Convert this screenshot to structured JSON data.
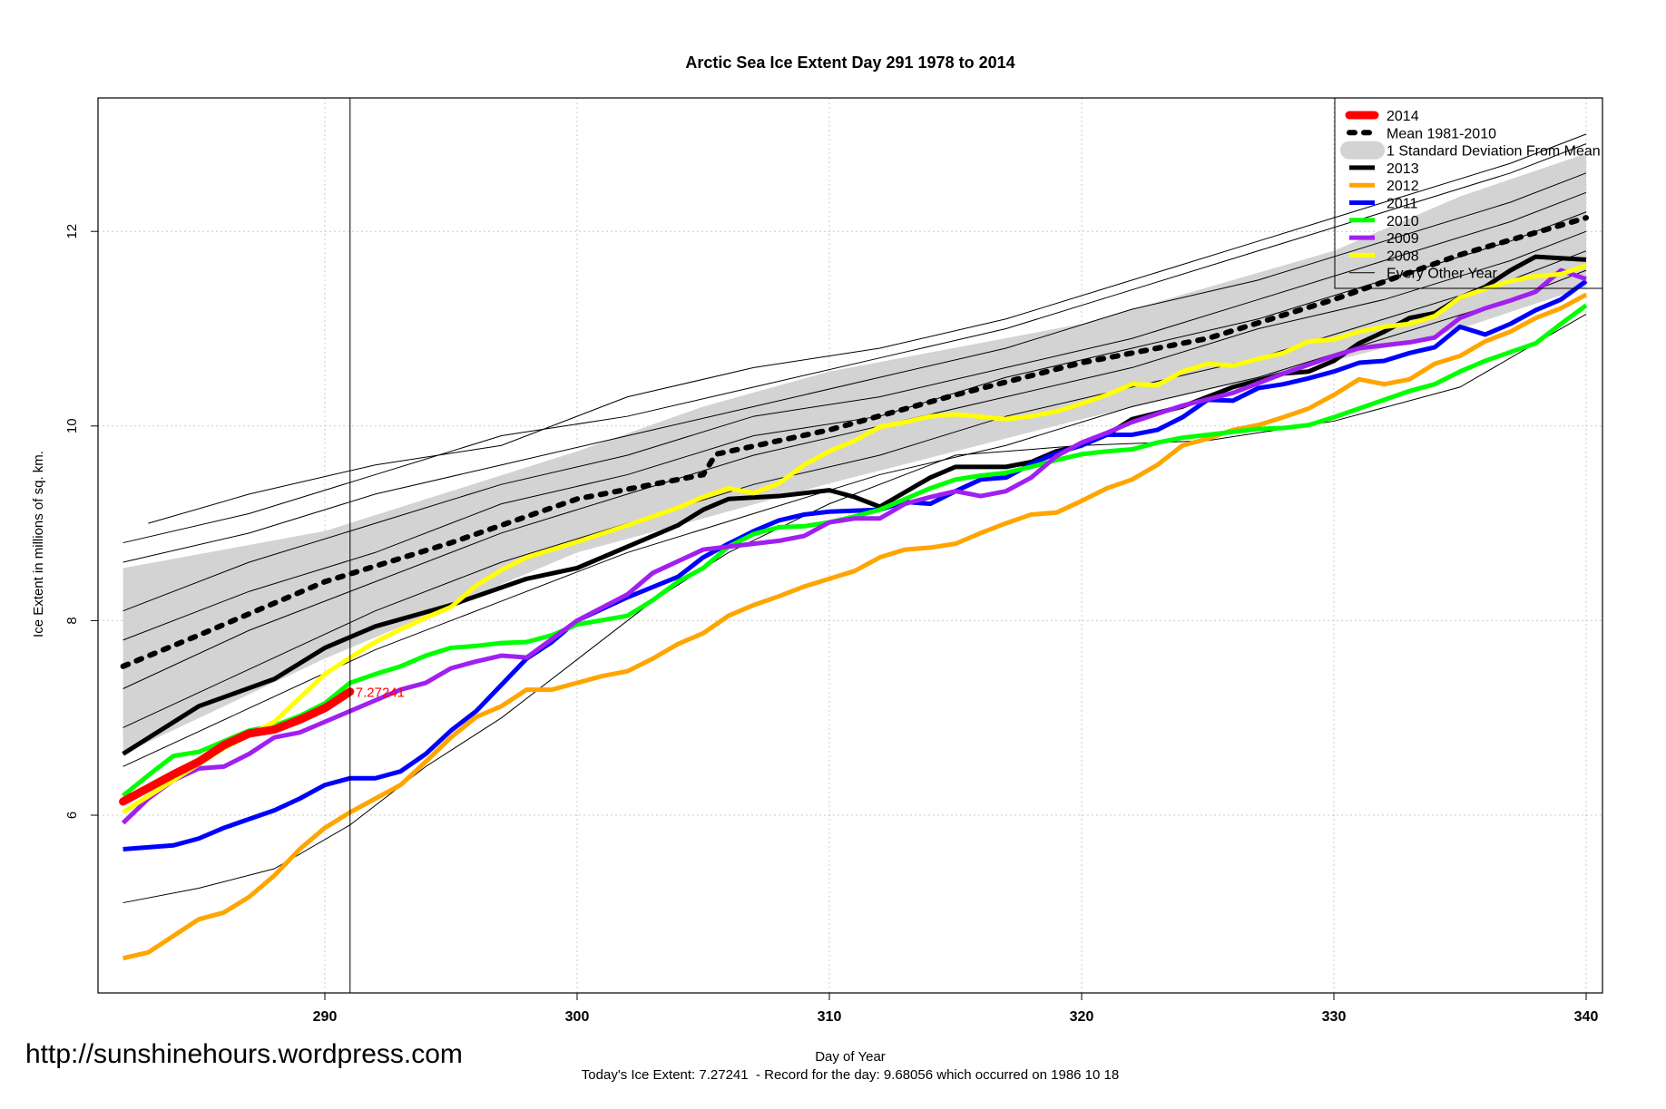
{
  "chart_data": {
    "type": "line",
    "title": "Arctic Sea Ice Extent Day 291 1978 to 2014",
    "xlabel": "Day of Year",
    "ylabel": "Ice Extent in millions of sq. km.",
    "subtitle": "Today's Ice Extent: 7.27241  - Record for the day: 9.68056 which occurred on 1986 10 18",
    "watermark": "http://sunshinehours.wordpress.com",
    "xlim": [
      281,
      341
    ],
    "ylim": [
      4.2,
      13.4
    ],
    "xticks": [
      "290",
      "300",
      "310",
      "320",
      "330",
      "340"
    ],
    "yticks": [
      "6",
      "8",
      "10",
      "12"
    ],
    "grid": true,
    "legend_position": "top-right",
    "current_day": 291,
    "current_value_label": "7.27241",
    "sd_band": {
      "name": "1 Standard Deviation From Mean",
      "color": "#d3d3d3",
      "x": [
        282,
        290,
        300,
        305,
        310,
        320,
        330,
        335,
        340
      ],
      "upper": [
        8.54,
        8.92,
        9.74,
        10.2,
        10.56,
        11.05,
        11.8,
        12.36,
        12.8
      ],
      "lower": [
        6.63,
        7.61,
        8.7,
        9.05,
        9.41,
        10.07,
        10.67,
        11.0,
        11.43
      ]
    },
    "series": [
      {
        "name": "Every Other Year",
        "color": "#000000",
        "style": "thin",
        "x": [
          282,
          287,
          292,
          297,
          302,
          307,
          312,
          317,
          322,
          327,
          332,
          337,
          340
        ],
        "values": [
          8.8,
          9.1,
          9.5,
          9.9,
          10.1,
          10.4,
          10.7,
          11.0,
          11.4,
          11.8,
          12.2,
          12.6,
          12.9
        ]
      },
      {
        "name": "",
        "color": "#000000",
        "style": "thin",
        "x": [
          283,
          287,
          292,
          297,
          302,
          307,
          312,
          317,
          322,
          327,
          332,
          337,
          340
        ],
        "values": [
          9.0,
          9.3,
          9.6,
          9.8,
          10.3,
          10.6,
          10.8,
          11.1,
          11.5,
          11.9,
          12.3,
          12.7,
          13.0
        ]
      },
      {
        "name": "",
        "color": "#000000",
        "style": "thin",
        "x": [
          282,
          287,
          292,
          297,
          302,
          307,
          312,
          317,
          322,
          327,
          332,
          337,
          340
        ],
        "values": [
          8.6,
          8.9,
          9.3,
          9.6,
          9.9,
          10.2,
          10.5,
          10.8,
          11.2,
          11.5,
          11.9,
          12.3,
          12.6
        ]
      },
      {
        "name": "",
        "color": "#000000",
        "style": "thin",
        "x": [
          282,
          287,
          292,
          297,
          302,
          307,
          312,
          317,
          322,
          327,
          332,
          337,
          340
        ],
        "values": [
          8.1,
          8.6,
          9.0,
          9.4,
          9.7,
          10.1,
          10.3,
          10.6,
          10.9,
          11.3,
          11.7,
          12.1,
          12.4
        ]
      },
      {
        "name": "",
        "color": "#000000",
        "style": "thin",
        "x": [
          282,
          287,
          292,
          297,
          302,
          307,
          312,
          317,
          322,
          327,
          332,
          337,
          340
        ],
        "values": [
          7.8,
          8.3,
          8.7,
          9.2,
          9.5,
          9.9,
          10.1,
          10.5,
          10.8,
          11.1,
          11.5,
          11.9,
          12.2
        ]
      },
      {
        "name": "",
        "color": "#000000",
        "style": "thin",
        "x": [
          282,
          287,
          292,
          297,
          302,
          307,
          312,
          317,
          322,
          327,
          332,
          337,
          340
        ],
        "values": [
          7.3,
          7.9,
          8.4,
          8.9,
          9.3,
          9.7,
          10.0,
          10.3,
          10.6,
          11.0,
          11.3,
          11.7,
          12.0
        ]
      },
      {
        "name": "",
        "color": "#000000",
        "style": "thin",
        "x": [
          282,
          287,
          292,
          297,
          302,
          307,
          312,
          317,
          322,
          327,
          332,
          337,
          340
        ],
        "values": [
          6.9,
          7.5,
          8.1,
          8.6,
          9.0,
          9.4,
          9.7,
          10.1,
          10.4,
          10.7,
          11.1,
          11.5,
          11.8
        ]
      },
      {
        "name": "",
        "color": "#000000",
        "style": "thin",
        "x": [
          282,
          287,
          292,
          297,
          302,
          307,
          312,
          317,
          322,
          327,
          332,
          337,
          340
        ],
        "values": [
          6.5,
          7.1,
          7.7,
          8.2,
          8.7,
          9.1,
          9.5,
          9.8,
          10.2,
          10.5,
          10.9,
          11.3,
          11.6
        ]
      },
      {
        "name": "",
        "color": "#000000",
        "style": "thin",
        "x": [
          282,
          285,
          288,
          291,
          294,
          297,
          300,
          303,
          306,
          310,
          315,
          320,
          325,
          330,
          335,
          340
        ],
        "values": [
          5.1,
          5.25,
          5.45,
          5.9,
          6.5,
          7.0,
          7.6,
          8.2,
          8.7,
          9.2,
          9.7,
          9.8,
          9.85,
          10.05,
          10.4,
          11.15
        ]
      }
    ],
    "highlight_series": [
      {
        "name": "Mean 1981-2010",
        "color": "#000000",
        "style": "dotted",
        "x": [
          282,
          285,
          290,
          291,
          295,
          300,
          305,
          305.5,
          310,
          315,
          320,
          325,
          330,
          335,
          340
        ],
        "values": [
          7.53,
          7.85,
          8.4,
          8.48,
          8.8,
          9.25,
          9.5,
          9.71,
          9.96,
          10.32,
          10.65,
          10.9,
          11.3,
          11.76,
          12.14
        ]
      },
      {
        "name": "2013",
        "color": "#000000",
        "style": "thick",
        "x": [
          282,
          285,
          288,
          290,
          292,
          295,
          298,
          300,
          302,
          304,
          305,
          306,
          308,
          310,
          311,
          312,
          314,
          315,
          317,
          318,
          319,
          320,
          321,
          322,
          324,
          326,
          328,
          329,
          330,
          331,
          332,
          333,
          334,
          335,
          336,
          337,
          338,
          340
        ],
        "values": [
          6.63,
          7.12,
          7.4,
          7.72,
          7.94,
          8.16,
          8.43,
          8.54,
          8.76,
          8.98,
          9.14,
          9.25,
          9.28,
          9.34,
          9.27,
          9.17,
          9.47,
          9.58,
          9.58,
          9.63,
          9.74,
          9.8,
          9.91,
          10.07,
          10.2,
          10.4,
          10.54,
          10.56,
          10.67,
          10.85,
          10.97,
          11.11,
          11.16,
          11.32,
          11.43,
          11.6,
          11.74,
          11.71
        ]
      },
      {
        "name": "2012",
        "color": "#ffa500",
        "style": "thick",
        "x": [
          282,
          283,
          284,
          285,
          286,
          287,
          288,
          289,
          290,
          291,
          292,
          293,
          294,
          295,
          296,
          297,
          298,
          299,
          300,
          301,
          302,
          303,
          304,
          305,
          306,
          307,
          308,
          309,
          310,
          311,
          312,
          313,
          314,
          315,
          316,
          317,
          318,
          319,
          320,
          321,
          322,
          323,
          324,
          325,
          326,
          327,
          328,
          329,
          330,
          331,
          332,
          333,
          334,
          335,
          336,
          337,
          338,
          339,
          340
        ],
        "values": [
          4.53,
          4.59,
          4.76,
          4.93,
          5.0,
          5.16,
          5.38,
          5.65,
          5.87,
          6.03,
          6.17,
          6.31,
          6.55,
          6.8,
          7.01,
          7.12,
          7.29,
          7.29,
          7.36,
          7.43,
          7.48,
          7.61,
          7.76,
          7.87,
          8.05,
          8.16,
          8.25,
          8.35,
          8.43,
          8.51,
          8.65,
          8.73,
          8.75,
          8.79,
          8.9,
          9.0,
          9.09,
          9.11,
          9.23,
          9.36,
          9.45,
          9.6,
          9.8,
          9.87,
          9.96,
          10.01,
          10.09,
          10.18,
          10.32,
          10.48,
          10.43,
          10.48,
          10.64,
          10.72,
          10.87,
          10.97,
          11.11,
          11.21,
          11.35
        ]
      },
      {
        "name": "2011",
        "color": "#0000ff",
        "style": "thick",
        "x": [
          282,
          284,
          285,
          286,
          287,
          288,
          289,
          290,
          291,
          292,
          293,
          294,
          295,
          296,
          297,
          298,
          299,
          300,
          302,
          304,
          305,
          306,
          307,
          308,
          309,
          310,
          312,
          313,
          314,
          315,
          316,
          317,
          318,
          319,
          320,
          321,
          322,
          323,
          324,
          325,
          326,
          327,
          328,
          329,
          330,
          331,
          332,
          333,
          334,
          335,
          336,
          337,
          338,
          339,
          340
        ],
        "values": [
          5.65,
          5.69,
          5.76,
          5.87,
          5.96,
          6.05,
          6.17,
          6.31,
          6.38,
          6.38,
          6.45,
          6.63,
          6.87,
          7.07,
          7.34,
          7.61,
          7.78,
          8.0,
          8.24,
          8.45,
          8.65,
          8.79,
          8.92,
          9.03,
          9.09,
          9.12,
          9.14,
          9.22,
          9.2,
          9.33,
          9.45,
          9.47,
          9.61,
          9.72,
          9.8,
          9.91,
          9.91,
          9.96,
          10.09,
          10.27,
          10.26,
          10.39,
          10.43,
          10.49,
          10.56,
          10.65,
          10.67,
          10.75,
          10.81,
          11.02,
          10.94,
          11.05,
          11.19,
          11.3,
          11.49
        ]
      },
      {
        "name": "2010",
        "color": "#00ff00",
        "style": "thick",
        "x": [
          282,
          283,
          284,
          285,
          286,
          287,
          288,
          289,
          290,
          291,
          292,
          293,
          294,
          295,
          296,
          297,
          298,
          299,
          300,
          302,
          303,
          304,
          305,
          306,
          307,
          308,
          309,
          310,
          311,
          312,
          313,
          314,
          315,
          316,
          317,
          318,
          319,
          320,
          321,
          322,
          323,
          324,
          325,
          326,
          327,
          328,
          329,
          330,
          331,
          332,
          333,
          334,
          335,
          336,
          337,
          338,
          339,
          340
        ],
        "values": [
          6.2,
          6.41,
          6.61,
          6.65,
          6.76,
          6.87,
          6.92,
          7.02,
          7.15,
          7.36,
          7.45,
          7.53,
          7.64,
          7.72,
          7.74,
          7.77,
          7.78,
          7.85,
          7.96,
          8.05,
          8.21,
          8.4,
          8.54,
          8.76,
          8.89,
          8.96,
          8.97,
          9.01,
          9.07,
          9.14,
          9.25,
          9.36,
          9.45,
          9.49,
          9.52,
          9.58,
          9.65,
          9.71,
          9.74,
          9.76,
          9.83,
          9.88,
          9.91,
          9.94,
          9.97,
          9.98,
          10.01,
          10.09,
          10.18,
          10.27,
          10.36,
          10.43,
          10.56,
          10.67,
          10.76,
          10.85,
          11.05,
          11.24
        ]
      },
      {
        "name": "2009",
        "color": "#a020f0",
        "style": "thick",
        "x": [
          282,
          283,
          284,
          285,
          286,
          287,
          288,
          289,
          290,
          291,
          292,
          293,
          294,
          295,
          296,
          297,
          298,
          300,
          302,
          303,
          305,
          306,
          307,
          308,
          309,
          310,
          311,
          312,
          313,
          314,
          315,
          316,
          317,
          318,
          319,
          320,
          321,
          322,
          324,
          326,
          328,
          330,
          331,
          333,
          334,
          335,
          336,
          337,
          338,
          339,
          340
        ],
        "values": [
          5.92,
          6.17,
          6.36,
          6.48,
          6.5,
          6.63,
          6.8,
          6.85,
          6.96,
          7.07,
          7.18,
          7.29,
          7.36,
          7.51,
          7.58,
          7.64,
          7.62,
          8.0,
          8.27,
          8.49,
          8.73,
          8.76,
          8.79,
          8.82,
          8.87,
          9.01,
          9.05,
          9.05,
          9.2,
          9.27,
          9.33,
          9.28,
          9.33,
          9.47,
          9.69,
          9.83,
          9.93,
          10.04,
          10.21,
          10.34,
          10.54,
          10.72,
          10.8,
          10.86,
          10.91,
          11.11,
          11.21,
          11.29,
          11.38,
          11.6,
          11.51
        ]
      },
      {
        "name": "2008",
        "color": "#ffff00",
        "style": "thick",
        "x": [
          282,
          284,
          286,
          288,
          290,
          291,
          292,
          293,
          294,
          295,
          296,
          297,
          298,
          299,
          300,
          302,
          304,
          305,
          306,
          307,
          308,
          309,
          310,
          311,
          312,
          313,
          314,
          315,
          317,
          318,
          319,
          320,
          321,
          322,
          323,
          324,
          325,
          326,
          327,
          328,
          329,
          330,
          331,
          332,
          333,
          334,
          335,
          336,
          337,
          338,
          339,
          340
        ],
        "values": [
          6.03,
          6.36,
          6.69,
          6.96,
          7.45,
          7.62,
          7.78,
          7.91,
          8.03,
          8.14,
          8.36,
          8.52,
          8.65,
          8.73,
          8.81,
          8.98,
          9.16,
          9.27,
          9.36,
          9.31,
          9.41,
          9.6,
          9.74,
          9.85,
          9.99,
          10.04,
          10.1,
          10.12,
          10.07,
          10.1,
          10.15,
          10.23,
          10.32,
          10.43,
          10.42,
          10.56,
          10.64,
          10.62,
          10.69,
          10.75,
          10.87,
          10.89,
          10.97,
          11.02,
          11.05,
          11.13,
          11.32,
          11.41,
          11.49,
          11.54,
          11.56,
          11.65
        ]
      },
      {
        "name": "2014",
        "color": "#ff0000",
        "style": "current",
        "x": [
          282,
          283,
          284,
          285,
          286,
          287,
          288,
          289,
          290,
          291
        ],
        "values": [
          6.14,
          6.28,
          6.42,
          6.55,
          6.72,
          6.84,
          6.88,
          6.98,
          7.1,
          7.27
        ]
      }
    ],
    "legend": [
      {
        "label": "2014",
        "color": "#ff0000",
        "style": "current"
      },
      {
        "label": "Mean 1981-2010",
        "color": "#000000",
        "style": "dotted"
      },
      {
        "label": "1 Standard Deviation From Mean",
        "color": "#d3d3d3",
        "style": "band"
      },
      {
        "label": "2013",
        "color": "#000000",
        "style": "thick"
      },
      {
        "label": "2012",
        "color": "#ffa500",
        "style": "thick"
      },
      {
        "label": "2011",
        "color": "#0000ff",
        "style": "thick"
      },
      {
        "label": "2010",
        "color": "#00ff00",
        "style": "thick"
      },
      {
        "label": "2009",
        "color": "#a020f0",
        "style": "thick"
      },
      {
        "label": "2008",
        "color": "#ffff00",
        "style": "thick"
      },
      {
        "label": "Every Other Year",
        "color": "#000000",
        "style": "thin"
      }
    ]
  }
}
